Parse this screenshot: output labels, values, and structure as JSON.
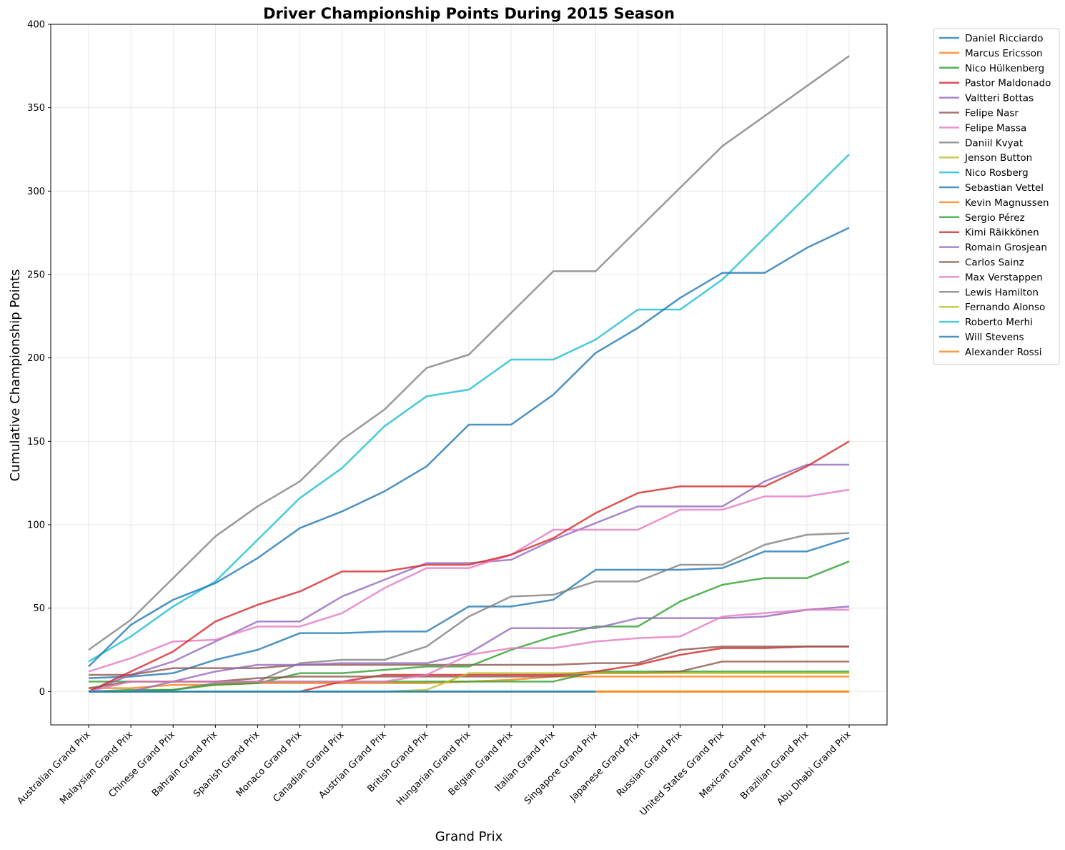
{
  "chart_data": {
    "type": "line",
    "title": "Driver Championship Points During 2015 Season",
    "xlabel": "Grand Prix",
    "ylabel": "Cumulative Championship Points",
    "ylim": [
      -20,
      400
    ],
    "yticks": [
      0,
      50,
      100,
      150,
      200,
      250,
      300,
      350,
      400
    ],
    "grid": true,
    "legend_position": "outside-right-top",
    "categories": [
      "Australian Grand Prix",
      "Malaysian Grand Prix",
      "Chinese Grand Prix",
      "Bahrain Grand Prix",
      "Spanish Grand Prix",
      "Monaco Grand Prix",
      "Canadian Grand Prix",
      "Austrian Grand Prix",
      "British Grand Prix",
      "Hungarian Grand Prix",
      "Belgian Grand Prix",
      "Italian Grand Prix",
      "Singapore Grand Prix",
      "Japanese Grand Prix",
      "Russian Grand Prix",
      "United States Grand Prix",
      "Mexican Grand Prix",
      "Brazilian Grand Prix",
      "Abu Dhabi Grand Prix"
    ],
    "series": [
      {
        "name": "Daniel Ricciardo",
        "color": "#1f77b4",
        "values": [
          8,
          9,
          11,
          19,
          25,
          35,
          35,
          36,
          36,
          51,
          51,
          55,
          73,
          73,
          73,
          74,
          84,
          84,
          92
        ]
      },
      {
        "name": "Marcus Ericsson",
        "color": "#ff7f0e",
        "values": [
          2,
          2,
          4,
          4,
          5,
          5,
          5,
          5,
          5,
          6,
          7,
          9,
          9,
          9,
          9,
          9,
          9,
          9,
          9
        ]
      },
      {
        "name": "Nico Hülkenberg",
        "color": "#2ca02c",
        "values": [
          6,
          6,
          6,
          6,
          6,
          6,
          6,
          6,
          6,
          6,
          6,
          6,
          12,
          12,
          12,
          12,
          12,
          12,
          12
        ]
      },
      {
        "name": "Pastor Maldonado",
        "color": "#d62728",
        "values": [
          0,
          0,
          0,
          0,
          0,
          0,
          6,
          10,
          10,
          10,
          10,
          10,
          12,
          16,
          22,
          26,
          26,
          27,
          27
        ]
      },
      {
        "name": "Valtteri Bottas",
        "color": "#9467bd",
        "values": [
          0,
          10,
          18,
          30,
          42,
          42,
          57,
          67,
          77,
          77,
          79,
          91,
          101,
          111,
          111,
          111,
          126,
          136,
          136
        ]
      },
      {
        "name": "Felipe Nasr",
        "color": "#8c564b",
        "values": [
          10,
          10,
          14,
          14,
          14,
          16,
          16,
          16,
          16,
          16,
          16,
          16,
          17,
          17,
          25,
          27,
          27,
          27,
          27
        ]
      },
      {
        "name": "Felipe Massa",
        "color": "#e377c2",
        "values": [
          12,
          20,
          30,
          31,
          39,
          39,
          47,
          62,
          74,
          74,
          82,
          97,
          97,
          97,
          109,
          109,
          117,
          117,
          121
        ]
      },
      {
        "name": "Daniil Kvyat",
        "color": "#7f7f7f",
        "values": [
          0,
          0,
          1,
          5,
          6,
          17,
          19,
          19,
          27,
          45,
          57,
          58,
          66,
          66,
          76,
          76,
          88,
          94,
          95
        ]
      },
      {
        "name": "Jenson Button",
        "color": "#bcbd22",
        "values": [
          0,
          0,
          0,
          0,
          0,
          0,
          0,
          0,
          0,
          0,
          0,
          0,
          0,
          0,
          0,
          0,
          0,
          0,
          0
        ]
      },
      {
        "name": "Nico Rosberg",
        "color": "#17becf",
        "values": [
          18,
          33,
          51,
          66,
          91,
          116,
          134,
          159,
          177,
          181,
          199,
          199,
          211,
          229,
          229,
          247,
          272,
          297,
          322
        ]
      },
      {
        "name": "Sebastian Vettel",
        "color": "#1f77b4",
        "values": [
          15,
          40,
          55,
          65,
          80,
          98,
          108,
          120,
          135,
          160,
          160,
          178,
          203,
          218,
          236,
          251,
          251,
          266,
          278
        ]
      },
      {
        "name": "Kevin Magnussen",
        "color": "#ff7f0e",
        "values": [
          0,
          0,
          0,
          0,
          0,
          0,
          0,
          0,
          0,
          0,
          0,
          0,
          0,
          0,
          0,
          0,
          0,
          0,
          0
        ]
      },
      {
        "name": "Sergio Pérez",
        "color": "#2ca02c",
        "values": [
          0,
          1,
          1,
          4,
          5,
          11,
          11,
          13,
          15,
          15,
          25,
          33,
          39,
          39,
          54,
          64,
          68,
          68,
          78
        ]
      },
      {
        "name": "Kimi Räikkönen",
        "color": "#d62728",
        "values": [
          0,
          12,
          24,
          42,
          52,
          60,
          72,
          72,
          76,
          76,
          82,
          92,
          107,
          119,
          123,
          123,
          123,
          135,
          150
        ]
      },
      {
        "name": "Romain Grosjean",
        "color": "#9467bd",
        "values": [
          0,
          0,
          6,
          12,
          16,
          16,
          17,
          17,
          17,
          23,
          38,
          38,
          38,
          44,
          44,
          44,
          45,
          49,
          51
        ]
      },
      {
        "name": "Carlos Sainz",
        "color": "#8c564b",
        "values": [
          2,
          6,
          6,
          6,
          8,
          9,
          9,
          9,
          9,
          9,
          9,
          9,
          11,
          11,
          12,
          18,
          18,
          18,
          18
        ]
      },
      {
        "name": "Max Verstappen",
        "color": "#e377c2",
        "values": [
          0,
          6,
          6,
          6,
          6,
          6,
          6,
          6,
          10,
          22,
          26,
          26,
          30,
          32,
          33,
          45,
          47,
          49,
          49
        ]
      },
      {
        "name": "Lewis Hamilton",
        "color": "#7f7f7f",
        "values": [
          25,
          43,
          68,
          93,
          111,
          126,
          151,
          169,
          194,
          202,
          227,
          252,
          252,
          277,
          302,
          327,
          345,
          363,
          381
        ]
      },
      {
        "name": "Fernando Alonso",
        "color": "#bcbd22",
        "values": [
          0,
          0,
          0,
          0,
          0,
          0,
          0,
          0,
          1,
          11,
          11,
          11,
          11,
          11,
          11,
          11,
          11,
          11,
          11
        ]
      },
      {
        "name": "Roberto Merhi",
        "color": "#17becf",
        "values": [
          0,
          0,
          0,
          0,
          0,
          0,
          0,
          0,
          0,
          0,
          0,
          0,
          0,
          null,
          null,
          null,
          null,
          null,
          null
        ]
      },
      {
        "name": "Will Stevens",
        "color": "#1f77b4",
        "values": [
          0,
          0,
          0,
          0,
          0,
          0,
          0,
          0,
          0,
          0,
          0,
          0,
          0,
          null,
          null,
          null,
          null,
          null,
          null
        ]
      },
      {
        "name": "Alexander Rossi",
        "color": "#ff7f0e",
        "values": [
          null,
          null,
          null,
          null,
          null,
          null,
          null,
          null,
          null,
          null,
          null,
          null,
          0,
          0,
          0,
          0,
          0,
          0,
          0
        ]
      }
    ]
  }
}
